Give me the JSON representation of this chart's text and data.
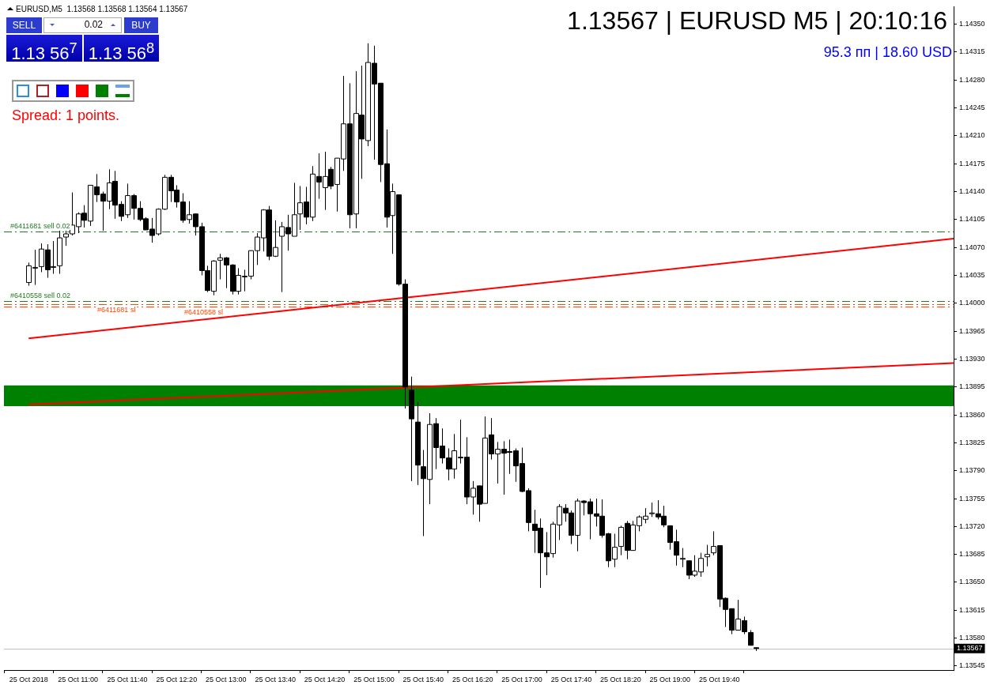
{
  "chart_data": {
    "type": "candlestick",
    "title": "1.13567 | EURUSD M5 | 20:10:16",
    "subtitle": "95.3 пп | 18.60 USD",
    "annotations": [
      "EURUSD,M5  1.13568 1.13568 1.13564 1.13567",
      "SELL",
      "BUY",
      "0.02",
      "1.13 56$^{7}$",
      "1.13 56$^{8}$",
      "Spread: 1 points."
    ],
    "x": [
      "2018-10-25T10:20",
      "2018-10-25T10:25",
      "2018-10-25T10:30",
      "2018-10-25T10:35",
      "2018-10-25T10:40",
      "2018-10-25T10:45",
      "2018-10-25T10:50",
      "2018-10-25T10:55",
      "2018-10-25T11:00",
      "2018-10-25T11:05",
      "2018-10-25T11:10",
      "2018-10-25T11:15",
      "2018-10-25T11:20",
      "2018-10-25T11:25",
      "2018-10-25T11:30",
      "2018-10-25T11:35",
      "2018-10-25T11:40",
      "2018-10-25T11:45",
      "2018-10-25T11:50",
      "2018-10-25T11:55",
      "2018-10-25T12:00",
      "2018-10-25T12:05",
      "2018-10-25T12:10",
      "2018-10-25T12:15",
      "2018-10-25T12:20",
      "2018-10-25T12:25",
      "2018-10-25T12:30",
      "2018-10-25T12:35",
      "2018-10-25T12:40",
      "2018-10-25T12:45",
      "2018-10-25T12:50",
      "2018-10-25T12:55",
      "2018-10-25T13:00",
      "2018-10-25T13:05",
      "2018-10-25T13:10",
      "2018-10-25T13:15",
      "2018-10-25T13:20",
      "2018-10-25T13:25",
      "2018-10-25T13:30",
      "2018-10-25T13:35",
      "2018-10-25T13:40",
      "2018-10-25T13:45",
      "2018-10-25T13:50",
      "2018-10-25T13:55",
      "2018-10-25T14:00",
      "2018-10-25T14:05",
      "2018-10-25T14:10",
      "2018-10-25T14:15",
      "2018-10-25T14:20",
      "2018-10-25T14:25",
      "2018-10-25T14:30",
      "2018-10-25T14:35",
      "2018-10-25T14:40",
      "2018-10-25T14:45",
      "2018-10-25T14:50",
      "2018-10-25T14:55",
      "2018-10-25T15:00",
      "2018-10-25T15:05",
      "2018-10-25T15:10",
      "2018-10-25T15:15",
      "2018-10-25T15:20",
      "2018-10-25T15:25",
      "2018-10-25T15:30",
      "2018-10-25T15:35",
      "2018-10-25T15:40",
      "2018-10-25T15:45",
      "2018-10-25T15:50",
      "2018-10-25T15:55",
      "2018-10-25T16:00",
      "2018-10-25T16:05",
      "2018-10-25T16:10",
      "2018-10-25T16:15",
      "2018-10-25T16:20",
      "2018-10-25T16:25",
      "2018-10-25T16:30",
      "2018-10-25T16:35",
      "2018-10-25T16:40",
      "2018-10-25T16:45",
      "2018-10-25T16:50",
      "2018-10-25T16:55",
      "2018-10-25T17:00",
      "2018-10-25T17:05",
      "2018-10-25T17:10",
      "2018-10-25T17:15",
      "2018-10-25T17:20",
      "2018-10-25T17:25",
      "2018-10-25T17:30",
      "2018-10-25T17:35",
      "2018-10-25T17:40",
      "2018-10-25T17:45",
      "2018-10-25T17:50",
      "2018-10-25T17:55",
      "2018-10-25T18:00",
      "2018-10-25T18:05",
      "2018-10-25T18:10",
      "2018-10-25T18:15",
      "2018-10-25T18:20",
      "2018-10-25T18:25",
      "2018-10-25T18:30",
      "2018-10-25T18:35",
      "2018-10-25T18:40",
      "2018-10-25T18:45",
      "2018-10-25T18:50",
      "2018-10-25T18:55",
      "2018-10-25T19:00",
      "2018-10-25T19:05",
      "2018-10-25T19:10",
      "2018-10-25T19:15",
      "2018-10-25T19:20",
      "2018-10-25T19:25",
      "2018-10-25T19:30",
      "2018-10-25T19:35",
      "2018-10-25T19:40",
      "2018-10-25T19:45",
      "2018-10-25T19:50",
      "2018-10-25T19:55",
      "2018-10-25T20:00",
      "2018-10-25T20:05",
      "2018-10-25T20:10"
    ],
    "ohlc": [
      [
        1.14026,
        1.14051,
        1.14022,
        1.14047
      ],
      [
        1.14045,
        1.14067,
        1.14023,
        1.14045
      ],
      [
        1.14046,
        1.14075,
        1.14039,
        1.14068
      ],
      [
        1.14067,
        1.14074,
        1.14032,
        1.14042
      ],
      [
        1.14046,
        1.14078,
        1.14037,
        1.14046
      ],
      [
        1.14047,
        1.14091,
        1.14037,
        1.14082
      ],
      [
        1.14083,
        1.14091,
        1.14072,
        1.14087
      ],
      [
        1.14087,
        1.14139,
        1.14085,
        1.14098
      ],
      [
        1.14096,
        1.14114,
        1.14088,
        1.14112
      ],
      [
        1.14113,
        1.14123,
        1.14095,
        1.14104
      ],
      [
        1.14103,
        1.14148,
        1.14097,
        1.14148
      ],
      [
        1.14146,
        1.14162,
        1.14127,
        1.14136
      ],
      [
        1.14137,
        1.1414,
        1.14091,
        1.14128
      ],
      [
        1.14128,
        1.14168,
        1.14118,
        1.14151
      ],
      [
        1.14153,
        1.14166,
        1.14106,
        1.14123
      ],
      [
        1.14124,
        1.14128,
        1.14103,
        1.14109
      ],
      [
        1.14111,
        1.1415,
        1.14107,
        1.14135
      ],
      [
        1.14135,
        1.14137,
        1.14105,
        1.14119
      ],
      [
        1.14119,
        1.14128,
        1.14103,
        1.14105
      ],
      [
        1.14106,
        1.14108,
        1.14092,
        1.14092
      ],
      [
        1.14093,
        1.14107,
        1.14076,
        1.14085
      ],
      [
        1.14087,
        1.14119,
        1.14085,
        1.14118
      ],
      [
        1.14118,
        1.14161,
        1.14117,
        1.14158
      ],
      [
        1.14158,
        1.14161,
        1.14127,
        1.14141
      ],
      [
        1.14142,
        1.14148,
        1.1412,
        1.14127
      ],
      [
        1.14127,
        1.14138,
        1.14101,
        1.14104
      ],
      [
        1.14105,
        1.14128,
        1.141,
        1.14111
      ],
      [
        1.14112,
        1.14112,
        1.14085,
        1.14096
      ],
      [
        1.14096,
        1.14101,
        1.14035,
        1.14041
      ],
      [
        1.14041,
        1.14047,
        1.14014,
        1.14016
      ],
      [
        1.14015,
        1.14054,
        1.1401,
        1.14053
      ],
      [
        1.14054,
        1.14062,
        1.1403,
        1.14057
      ],
      [
        1.14057,
        1.14058,
        1.14019,
        1.14048
      ],
      [
        1.14048,
        1.14049,
        1.14011,
        1.14015
      ],
      [
        1.14015,
        1.14044,
        1.14011,
        1.14035
      ],
      [
        1.14034,
        1.14042,
        1.14015,
        1.14034
      ],
      [
        1.14034,
        1.14066,
        1.1403,
        1.14066
      ],
      [
        1.14066,
        1.14088,
        1.14048,
        1.14083
      ],
      [
        1.14082,
        1.14118,
        1.14065,
        1.14117
      ],
      [
        1.14117,
        1.14122,
        1.14054,
        1.14059
      ],
      [
        1.14059,
        1.14104,
        1.14058,
        1.1407
      ],
      [
        1.14084,
        1.14102,
        1.14014,
        1.14096
      ],
      [
        1.14095,
        1.14111,
        1.14066,
        1.14087
      ],
      [
        1.14084,
        1.14151,
        1.14084,
        1.14111
      ],
      [
        1.14112,
        1.14147,
        1.14092,
        1.14126
      ],
      [
        1.14127,
        1.14146,
        1.14099,
        1.14108
      ],
      [
        1.14108,
        1.14172,
        1.14103,
        1.14162
      ],
      [
        1.14159,
        1.14188,
        1.14131,
        1.14152
      ],
      [
        1.14145,
        1.1419,
        1.14117,
        1.14159
      ],
      [
        1.14168,
        1.14171,
        1.14143,
        1.14147
      ],
      [
        1.14149,
        1.14182,
        1.14115,
        1.14182
      ],
      [
        1.14181,
        1.14285,
        1.14166,
        1.14225
      ],
      [
        1.14225,
        1.14276,
        1.14094,
        1.14111
      ],
      [
        1.14112,
        1.14291,
        1.14094,
        1.14238
      ],
      [
        1.14236,
        1.14298,
        1.14156,
        1.14206
      ],
      [
        1.14204,
        1.14326,
        1.14197,
        1.14302
      ],
      [
        1.14301,
        1.14323,
        1.1418,
        1.14275
      ],
      [
        1.14276,
        1.14276,
        1.14152,
        1.14174
      ],
      [
        1.14175,
        1.14218,
        1.14095,
        1.14108
      ],
      [
        1.1411,
        1.1415,
        1.14062,
        1.1414
      ],
      [
        1.14136,
        1.14136,
        1.14022,
        1.14024
      ],
      [
        1.14024,
        1.1403,
        1.13868,
        1.13895
      ],
      [
        1.13891,
        1.13908,
        1.13777,
        1.13855
      ],
      [
        1.13851,
        1.13876,
        1.13772,
        1.13797
      ],
      [
        1.13795,
        1.13816,
        1.13708,
        1.1378
      ],
      [
        1.13779,
        1.13862,
        1.13748,
        1.13848
      ],
      [
        1.13849,
        1.13856,
        1.13792,
        1.13819
      ],
      [
        1.13821,
        1.13843,
        1.13799,
        1.13806
      ],
      [
        1.13806,
        1.13818,
        1.13778,
        1.13792
      ],
      [
        1.13792,
        1.13836,
        1.1378,
        1.13815
      ],
      [
        1.13807,
        1.13854,
        1.13799,
        1.13807
      ],
      [
        1.13807,
        1.13832,
        1.13748,
        1.13757
      ],
      [
        1.13757,
        1.13777,
        1.13735,
        1.13768
      ],
      [
        1.13771,
        1.13771,
        1.13726,
        1.13748
      ],
      [
        1.13749,
        1.13858,
        1.13749,
        1.13831
      ],
      [
        1.13835,
        1.13856,
        1.13804,
        1.13811
      ],
      [
        1.13811,
        1.13826,
        1.13774,
        1.13817
      ],
      [
        1.13817,
        1.13827,
        1.1376,
        1.13812
      ],
      [
        1.13814,
        1.13829,
        1.13786,
        1.13813
      ],
      [
        1.13815,
        1.13818,
        1.13776,
        1.13796
      ],
      [
        1.13799,
        1.13819,
        1.13763,
        1.13764
      ],
      [
        1.13765,
        1.13768,
        1.13714,
        1.13725
      ],
      [
        1.13723,
        1.13741,
        1.13687,
        1.13715
      ],
      [
        1.13718,
        1.1373,
        1.13643,
        1.13687
      ],
      [
        1.13687,
        1.13713,
        1.13659,
        1.13682
      ],
      [
        1.13686,
        1.13726,
        1.13681,
        1.13723
      ],
      [
        1.13722,
        1.13748,
        1.13703,
        1.13745
      ],
      [
        1.13743,
        1.13748,
        1.13726,
        1.13737
      ],
      [
        1.13737,
        1.1374,
        1.13698,
        1.13709
      ],
      [
        1.13709,
        1.13755,
        1.13689,
        1.13752
      ],
      [
        1.13752,
        1.13753,
        1.13734,
        1.1375
      ],
      [
        1.13751,
        1.13755,
        1.13704,
        1.13736
      ],
      [
        1.13736,
        1.13755,
        1.1372,
        1.13733
      ],
      [
        1.13733,
        1.13754,
        1.13706,
        1.13709
      ],
      [
        1.13711,
        1.13712,
        1.13669,
        1.13677
      ],
      [
        1.13679,
        1.13711,
        1.13669,
        1.13694
      ],
      [
        1.13695,
        1.13721,
        1.13684,
        1.13719
      ],
      [
        1.13724,
        1.13727,
        1.13679,
        1.1369
      ],
      [
        1.1369,
        1.13727,
        1.1369,
        1.13722
      ],
      [
        1.13721,
        1.13734,
        1.13714,
        1.13732
      ],
      [
        1.13729,
        1.13743,
        1.13724,
        1.13733
      ],
      [
        1.13737,
        1.1375,
        1.13732,
        1.13737
      ],
      [
        1.13736,
        1.13753,
        1.13729,
        1.13732
      ],
      [
        1.13733,
        1.13746,
        1.13719,
        1.13722
      ],
      [
        1.13721,
        1.13721,
        1.13691,
        1.137
      ],
      [
        1.13701,
        1.13716,
        1.13671,
        1.13684
      ],
      [
        1.1368,
        1.13693,
        1.13669,
        1.1368
      ],
      [
        1.13677,
        1.13677,
        1.13654,
        1.13659
      ],
      [
        1.13659,
        1.13684,
        1.13657,
        1.13664
      ],
      [
        1.13663,
        1.13687,
        1.13657,
        1.1368
      ],
      [
        1.13682,
        1.13697,
        1.1367,
        1.13685
      ],
      [
        1.13687,
        1.13714,
        1.13684,
        1.13695
      ],
      [
        1.13696,
        1.13696,
        1.13619,
        1.13629
      ],
      [
        1.1363,
        1.13631,
        1.13594,
        1.13616
      ],
      [
        1.13617,
        1.13617,
        1.13585,
        1.1359
      ],
      [
        1.1359,
        1.13628,
        1.1359,
        1.13604
      ],
      [
        1.13602,
        1.13607,
        1.13585,
        1.13588
      ],
      [
        1.13587,
        1.1359,
        1.13571,
        1.13571
      ],
      [
        1.13568,
        1.13568,
        1.13564,
        1.13567
      ]
    ],
    "series": [
      {
        "type": "line",
        "color": "#ff0000",
        "x": [
          "2018-10-25T10:20",
          "2018-10-25T22:50"
        ],
        "values": [
          1.13956,
          1.14081
        ]
      },
      {
        "type": "line",
        "color": "#ff0000",
        "x": [
          "2018-10-25T10:20",
          "2018-10-25T22:50"
        ],
        "values": [
          1.13873,
          1.13925
        ]
      }
    ],
    "bands": [
      {
        "axis": "y",
        "from": 1.13871,
        "to": 1.13897,
        "color": "#008000"
      }
    ],
    "ref_lines": [
      {
        "axis": "y",
        "value": 1.1409,
        "label": "#6411681 sell 0.02",
        "color": "#1e7b1e",
        "line_style": "dashed"
      },
      {
        "axis": "y",
        "value": 1.14003,
        "label": "#6410558 sell 0.02",
        "color": "#1e7b1e",
        "line_style": "dashed"
      },
      {
        "axis": "y",
        "value": 1.13999,
        "label": "#6411681 sl",
        "color": "#ff4500",
        "line_style": "dashed"
      },
      {
        "axis": "y",
        "value": 1.13996,
        "label": "#6410558 sl",
        "color": "#ff4500",
        "line_style": "dashed"
      },
      {
        "axis": "y",
        "value": 1.13567,
        "label": "1.13567",
        "color": "#c0c0c0",
        "line_style": "solid"
      }
    ],
    "xlim": [
      "2018-10-25T10:00",
      "2018-10-25T22:50"
    ],
    "xticks": [
      {
        "value": "2018-10-25T10:20",
        "label": "25 Oct 2018"
      },
      {
        "value": "2018-10-25T11:00",
        "label": "25 Oct 11:00"
      },
      {
        "value": "2018-10-25T11:40",
        "label": "25 Oct 11:40"
      },
      {
        "value": "2018-10-25T12:20",
        "label": "25 Oct 12:20"
      },
      {
        "value": "2018-10-25T13:00",
        "label": "25 Oct 13:00"
      },
      {
        "value": "2018-10-25T13:40",
        "label": "25 Oct 13:40"
      },
      {
        "value": "2018-10-25T14:20",
        "label": "25 Oct 14:20"
      },
      {
        "value": "2018-10-25T15:00",
        "label": "25 Oct 15:00"
      },
      {
        "value": "2018-10-25T15:40",
        "label": "25 Oct 15:40"
      },
      {
        "value": "2018-10-25T16:20",
        "label": "25 Oct 16:20"
      },
      {
        "value": "2018-10-25T17:00",
        "label": "25 Oct 17:00"
      },
      {
        "value": "2018-10-25T17:40",
        "label": "25 Oct 17:40"
      },
      {
        "value": "2018-10-25T18:20",
        "label": "25 Oct 18:20"
      },
      {
        "value": "2018-10-25T19:00",
        "label": "25 Oct 19:00"
      },
      {
        "value": "2018-10-25T19:40",
        "label": "25 Oct 19:40"
      }
    ],
    "ylim": [
      1.1354,
      1.14372
    ],
    "yticks": [
      1.13545,
      {
        "value": 1.1358,
        "label": "1.13580"
      },
      1.13615,
      {
        "value": 1.1365,
        "label": "1.13650"
      },
      1.13685,
      {
        "value": 1.1372,
        "label": "1.13720"
      },
      1.13755,
      {
        "value": 1.1379,
        "label": "1.13790"
      },
      1.13825,
      {
        "value": 1.1386,
        "label": "1.13860"
      },
      1.13895,
      {
        "value": 1.1393,
        "label": "1.13930"
      },
      1.13965,
      {
        "value": 1.14,
        "label": "1.14000"
      },
      1.14035,
      {
        "value": 1.1407,
        "label": "1.14070"
      },
      1.14105,
      {
        "value": 1.1414,
        "label": "1.14140"
      },
      1.14175,
      {
        "value": 1.1421,
        "label": "1.14210"
      },
      1.14245,
      {
        "value": 1.1428,
        "label": "1.14280"
      },
      1.14315,
      {
        "value": 1.1435,
        "label": "1.14350"
      }
    ]
  }
}
